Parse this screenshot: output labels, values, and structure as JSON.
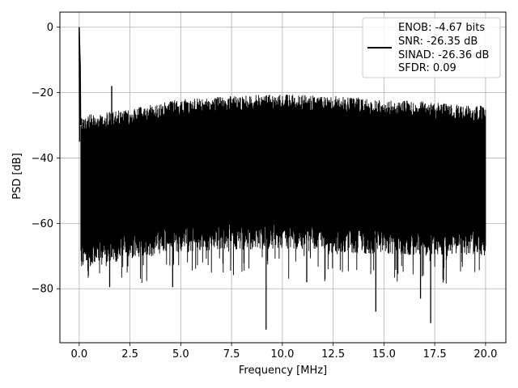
{
  "chart_data": {
    "type": "line",
    "title": "",
    "xlabel": "Frequency [MHz]",
    "ylabel": "PSD [dB]",
    "xlim": [
      -0.95,
      21.0
    ],
    "ylim": [
      -96.5,
      4.6
    ],
    "xticks": [
      0.0,
      2.5,
      5.0,
      7.5,
      10.0,
      12.5,
      15.0,
      17.5,
      20.0
    ],
    "xtick_labels": [
      "0.0",
      "2.5",
      "5.0",
      "7.5",
      "10.0",
      "12.5",
      "15.0",
      "17.5",
      "20.0"
    ],
    "yticks": [
      0,
      -20,
      -40,
      -60,
      -80
    ],
    "ytick_labels": [
      "0",
      "−20",
      "−40",
      "−60",
      "−80"
    ],
    "grid": true,
    "legend_position": "top-right",
    "legend_lines": [
      "ENOB: -4.67 bits",
      "SNR: -26.35 dB",
      "SINAD: -26.36 dB",
      "SFDR: 0.09"
    ],
    "series": [
      {
        "color": "#000000",
        "description": "dense noise spectrum",
        "peaks": [
          {
            "x": 0.0,
            "y": 0.0
          },
          {
            "x": 0.05,
            "y": -12.0
          },
          {
            "x": 1.6,
            "y": -18.0
          }
        ],
        "upper_envelope": [
          {
            "x": 0.1,
            "y": -27.0
          },
          {
            "x": 2.5,
            "y": -25.0
          },
          {
            "x": 5.0,
            "y": -22.0
          },
          {
            "x": 7.5,
            "y": -21.0
          },
          {
            "x": 10.0,
            "y": -20.5
          },
          {
            "x": 12.5,
            "y": -21.0
          },
          {
            "x": 15.0,
            "y": -22.0
          },
          {
            "x": 17.5,
            "y": -23.0
          },
          {
            "x": 20.0,
            "y": -24.0
          }
        ],
        "lower_envelope": [
          {
            "x": 0.1,
            "y": -66.0
          },
          {
            "x": 2.5,
            "y": -63.0
          },
          {
            "x": 5.0,
            "y": -61.0
          },
          {
            "x": 7.5,
            "y": -60.0
          },
          {
            "x": 10.0,
            "y": -60.0
          },
          {
            "x": 12.5,
            "y": -61.0
          },
          {
            "x": 15.0,
            "y": -61.5
          },
          {
            "x": 17.5,
            "y": -62.0
          },
          {
            "x": 20.0,
            "y": -62.0
          }
        ],
        "dips": [
          {
            "x": 0.45,
            "y": -76.0
          },
          {
            "x": 1.5,
            "y": -79.5
          },
          {
            "x": 4.6,
            "y": -79.5
          },
          {
            "x": 9.2,
            "y": -92.5
          },
          {
            "x": 11.2,
            "y": -78.0
          },
          {
            "x": 14.6,
            "y": -87.0
          },
          {
            "x": 16.8,
            "y": -83.0
          },
          {
            "x": 17.3,
            "y": -90.5
          }
        ]
      }
    ]
  }
}
